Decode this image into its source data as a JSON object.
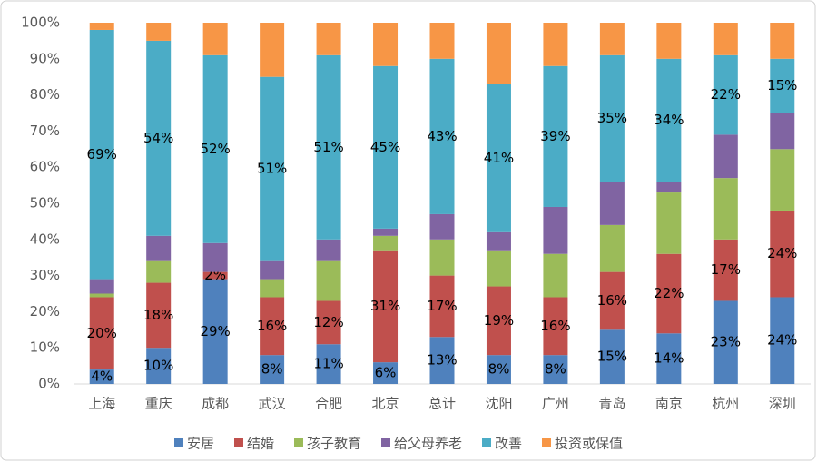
{
  "chart_data": {
    "type": "stacked_bar",
    "categories": [
      "上海",
      "重庆",
      "成都",
      "武汉",
      "合肥",
      "北京",
      "总计",
      "沈阳",
      "广州",
      "青岛",
      "南京",
      "杭州",
      "深圳"
    ],
    "series": [
      {
        "name": "安居",
        "color": "#4f81bd",
        "values": [
          4,
          10,
          29,
          8,
          11,
          6,
          13,
          8,
          8,
          15,
          14,
          23,
          24
        ],
        "value_labels": [
          "4%",
          "10%",
          "29%",
          "8%",
          "11%",
          "6%",
          "13%",
          "8%",
          "8%",
          "15%",
          "14%",
          "23%",
          "24%"
        ]
      },
      {
        "name": "结婚",
        "color": "#c0504d",
        "values": [
          20,
          18,
          2,
          16,
          12,
          31,
          17,
          19,
          16,
          16,
          22,
          17,
          24
        ],
        "value_labels": [
          "20%",
          "18%",
          "2%",
          "16%",
          "12%",
          "31%",
          "17%",
          "19%",
          "16%",
          "16%",
          "22%",
          "17%",
          "24%"
        ]
      },
      {
        "name": "孩子教育",
        "color": "#9bbb59",
        "values": [
          1,
          6,
          0,
          5,
          11,
          4,
          10,
          10,
          12,
          13,
          17,
          17,
          17
        ]
      },
      {
        "name": "给父母养老",
        "color": "#8064a2",
        "values": [
          4,
          7,
          8,
          5,
          6,
          2,
          7,
          5,
          13,
          12,
          3,
          12,
          10
        ]
      },
      {
        "name": "改善",
        "color": "#4bacc6",
        "values": [
          69,
          54,
          52,
          51,
          51,
          45,
          43,
          41,
          39,
          35,
          34,
          22,
          15
        ],
        "value_labels": [
          "69%",
          "54%",
          "52%",
          "51%",
          "51%",
          "45%",
          "43%",
          "41%",
          "39%",
          "35%",
          "34%",
          "22%",
          "15%"
        ]
      },
      {
        "name": "投资或保值",
        "color": "#f79646",
        "values": [
          2,
          5,
          9,
          15,
          9,
          12,
          10,
          17,
          12,
          9,
          10,
          9,
          10
        ]
      }
    ],
    "ylim": [
      0,
      100
    ],
    "yticks": [
      {
        "value": 0,
        "label": "0%"
      },
      {
        "value": 10,
        "label": "10%"
      },
      {
        "value": 20,
        "label": "20%"
      },
      {
        "value": 30,
        "label": "30%"
      },
      {
        "value": 40,
        "label": "40%"
      },
      {
        "value": 50,
        "label": "50%"
      },
      {
        "value": 60,
        "label": "60%"
      },
      {
        "value": 70,
        "label": "70%"
      },
      {
        "value": 80,
        "label": "80%"
      },
      {
        "value": 90,
        "label": "90%"
      },
      {
        "value": 100,
        "label": "100%"
      }
    ],
    "legend": "bottom"
  }
}
